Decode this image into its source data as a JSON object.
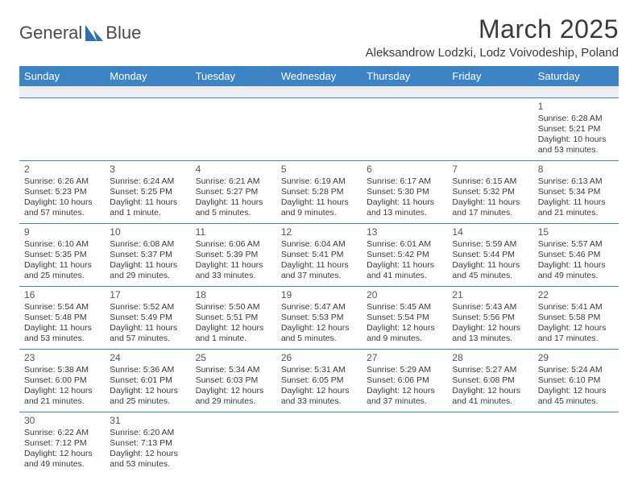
{
  "brand": {
    "part1": "General",
    "part2": "Blue"
  },
  "title": "March 2025",
  "location": "Aleksandrow Lodzki, Lodz Voivodeship, Poland",
  "colors": {
    "header_bg": "#3d84c6",
    "header_text": "#ffffff",
    "cell_border": "#3d84c6",
    "spacer_bg": "#eeeeee",
    "text": "#3a3a3a",
    "logo_blue": "#2f6fb3"
  },
  "dayHeaders": [
    "Sunday",
    "Monday",
    "Tuesday",
    "Wednesday",
    "Thursday",
    "Friday",
    "Saturday"
  ],
  "weeks": [
    [
      null,
      null,
      null,
      null,
      null,
      null,
      {
        "n": "1",
        "sr": "Sunrise: 6:28 AM",
        "ss": "Sunset: 5:21 PM",
        "d1": "Daylight: 10 hours",
        "d2": "and 53 minutes."
      }
    ],
    [
      {
        "n": "2",
        "sr": "Sunrise: 6:26 AM",
        "ss": "Sunset: 5:23 PM",
        "d1": "Daylight: 10 hours",
        "d2": "and 57 minutes."
      },
      {
        "n": "3",
        "sr": "Sunrise: 6:24 AM",
        "ss": "Sunset: 5:25 PM",
        "d1": "Daylight: 11 hours",
        "d2": "and 1 minute."
      },
      {
        "n": "4",
        "sr": "Sunrise: 6:21 AM",
        "ss": "Sunset: 5:27 PM",
        "d1": "Daylight: 11 hours",
        "d2": "and 5 minutes."
      },
      {
        "n": "5",
        "sr": "Sunrise: 6:19 AM",
        "ss": "Sunset: 5:28 PM",
        "d1": "Daylight: 11 hours",
        "d2": "and 9 minutes."
      },
      {
        "n": "6",
        "sr": "Sunrise: 6:17 AM",
        "ss": "Sunset: 5:30 PM",
        "d1": "Daylight: 11 hours",
        "d2": "and 13 minutes."
      },
      {
        "n": "7",
        "sr": "Sunrise: 6:15 AM",
        "ss": "Sunset: 5:32 PM",
        "d1": "Daylight: 11 hours",
        "d2": "and 17 minutes."
      },
      {
        "n": "8",
        "sr": "Sunrise: 6:13 AM",
        "ss": "Sunset: 5:34 PM",
        "d1": "Daylight: 11 hours",
        "d2": "and 21 minutes."
      }
    ],
    [
      {
        "n": "9",
        "sr": "Sunrise: 6:10 AM",
        "ss": "Sunset: 5:35 PM",
        "d1": "Daylight: 11 hours",
        "d2": "and 25 minutes."
      },
      {
        "n": "10",
        "sr": "Sunrise: 6:08 AM",
        "ss": "Sunset: 5:37 PM",
        "d1": "Daylight: 11 hours",
        "d2": "and 29 minutes."
      },
      {
        "n": "11",
        "sr": "Sunrise: 6:06 AM",
        "ss": "Sunset: 5:39 PM",
        "d1": "Daylight: 11 hours",
        "d2": "and 33 minutes."
      },
      {
        "n": "12",
        "sr": "Sunrise: 6:04 AM",
        "ss": "Sunset: 5:41 PM",
        "d1": "Daylight: 11 hours",
        "d2": "and 37 minutes."
      },
      {
        "n": "13",
        "sr": "Sunrise: 6:01 AM",
        "ss": "Sunset: 5:42 PM",
        "d1": "Daylight: 11 hours",
        "d2": "and 41 minutes."
      },
      {
        "n": "14",
        "sr": "Sunrise: 5:59 AM",
        "ss": "Sunset: 5:44 PM",
        "d1": "Daylight: 11 hours",
        "d2": "and 45 minutes."
      },
      {
        "n": "15",
        "sr": "Sunrise: 5:57 AM",
        "ss": "Sunset: 5:46 PM",
        "d1": "Daylight: 11 hours",
        "d2": "and 49 minutes."
      }
    ],
    [
      {
        "n": "16",
        "sr": "Sunrise: 5:54 AM",
        "ss": "Sunset: 5:48 PM",
        "d1": "Daylight: 11 hours",
        "d2": "and 53 minutes."
      },
      {
        "n": "17",
        "sr": "Sunrise: 5:52 AM",
        "ss": "Sunset: 5:49 PM",
        "d1": "Daylight: 11 hours",
        "d2": "and 57 minutes."
      },
      {
        "n": "18",
        "sr": "Sunrise: 5:50 AM",
        "ss": "Sunset: 5:51 PM",
        "d1": "Daylight: 12 hours",
        "d2": "and 1 minute."
      },
      {
        "n": "19",
        "sr": "Sunrise: 5:47 AM",
        "ss": "Sunset: 5:53 PM",
        "d1": "Daylight: 12 hours",
        "d2": "and 5 minutes."
      },
      {
        "n": "20",
        "sr": "Sunrise: 5:45 AM",
        "ss": "Sunset: 5:54 PM",
        "d1": "Daylight: 12 hours",
        "d2": "and 9 minutes."
      },
      {
        "n": "21",
        "sr": "Sunrise: 5:43 AM",
        "ss": "Sunset: 5:56 PM",
        "d1": "Daylight: 12 hours",
        "d2": "and 13 minutes."
      },
      {
        "n": "22",
        "sr": "Sunrise: 5:41 AM",
        "ss": "Sunset: 5:58 PM",
        "d1": "Daylight: 12 hours",
        "d2": "and 17 minutes."
      }
    ],
    [
      {
        "n": "23",
        "sr": "Sunrise: 5:38 AM",
        "ss": "Sunset: 6:00 PM",
        "d1": "Daylight: 12 hours",
        "d2": "and 21 minutes."
      },
      {
        "n": "24",
        "sr": "Sunrise: 5:36 AM",
        "ss": "Sunset: 6:01 PM",
        "d1": "Daylight: 12 hours",
        "d2": "and 25 minutes."
      },
      {
        "n": "25",
        "sr": "Sunrise: 5:34 AM",
        "ss": "Sunset: 6:03 PM",
        "d1": "Daylight: 12 hours",
        "d2": "and 29 minutes."
      },
      {
        "n": "26",
        "sr": "Sunrise: 5:31 AM",
        "ss": "Sunset: 6:05 PM",
        "d1": "Daylight: 12 hours",
        "d2": "and 33 minutes."
      },
      {
        "n": "27",
        "sr": "Sunrise: 5:29 AM",
        "ss": "Sunset: 6:06 PM",
        "d1": "Daylight: 12 hours",
        "d2": "and 37 minutes."
      },
      {
        "n": "28",
        "sr": "Sunrise: 5:27 AM",
        "ss": "Sunset: 6:08 PM",
        "d1": "Daylight: 12 hours",
        "d2": "and 41 minutes."
      },
      {
        "n": "29",
        "sr": "Sunrise: 5:24 AM",
        "ss": "Sunset: 6:10 PM",
        "d1": "Daylight: 12 hours",
        "d2": "and 45 minutes."
      }
    ],
    [
      {
        "n": "30",
        "sr": "Sunrise: 6:22 AM",
        "ss": "Sunset: 7:12 PM",
        "d1": "Daylight: 12 hours",
        "d2": "and 49 minutes."
      },
      {
        "n": "31",
        "sr": "Sunrise: 6:20 AM",
        "ss": "Sunset: 7:13 PM",
        "d1": "Daylight: 12 hours",
        "d2": "and 53 minutes."
      },
      null,
      null,
      null,
      null,
      null
    ]
  ]
}
